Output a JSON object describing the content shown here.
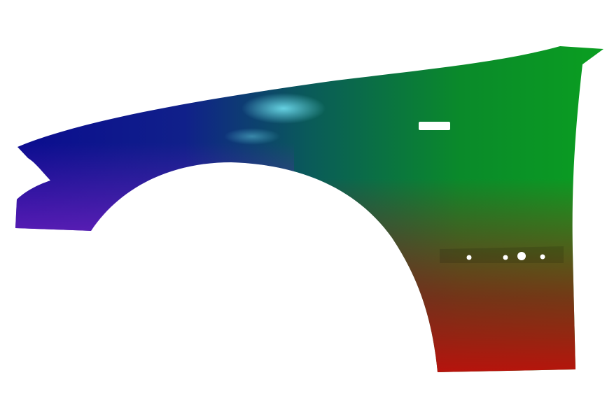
{
  "scene": {
    "subject": "car-front-fender",
    "background_color": "#ffffff",
    "colors": {
      "left": "#0a0a8c",
      "upper_right": "#0a9a1a",
      "lower_right": "#c00a0a",
      "highlight": "#5fd0e8",
      "lower_left_edge": "#6a1fb0"
    }
  }
}
